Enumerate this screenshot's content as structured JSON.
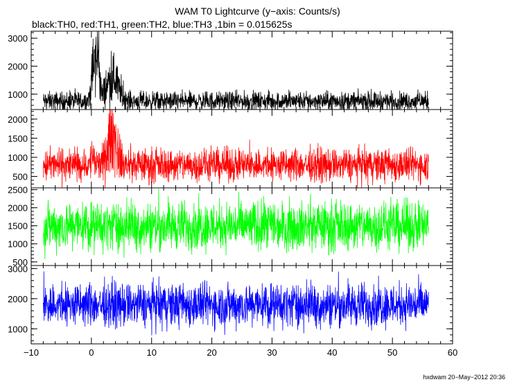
{
  "title": "WAM T0 Lightcurve (y−axis: Counts/s)",
  "subtitle": "black:TH0, red:TH1, green:TH2, blue:TH3 ,1bin = 0.015625s",
  "footer": "hxdwam 20−May−2012 20:36",
  "chart_data": {
    "type": "line",
    "title": "WAM T0 Lightcurve (y−axis: Counts/s)",
    "subtitle": "black:TH0, red:TH1, green:TH2, blue:TH3 ,1bin = 0.015625s",
    "xlabel": "",
    "ylabel": "Counts/s",
    "xlim": [
      -10,
      60
    ],
    "x_ticks": [
      -10,
      0,
      10,
      20,
      30,
      40,
      50,
      60
    ],
    "x_tick_labels": [
      "−10",
      "0",
      "10",
      "20",
      "30",
      "40",
      "50",
      "60"
    ],
    "x_data_range": [
      -8,
      56
    ],
    "bin_seconds": 0.015625,
    "series": [
      {
        "name": "TH0",
        "color": "#000000",
        "ylim": [
          450,
          3250
        ],
        "y_ticks": [
          1000,
          2000,
          3000
        ],
        "baseline_mean": 750,
        "noise_spread": 350,
        "bursts": [
          {
            "time": 0.5,
            "peak": 3200,
            "width": 0.6
          },
          {
            "time": 1.2,
            "peak": 3250,
            "width": 0.3
          },
          {
            "time": 3.5,
            "peak": 2300,
            "width": 1.4
          }
        ]
      },
      {
        "name": "TH1",
        "color": "#ff0000",
        "ylim": [
          200,
          2250
        ],
        "y_ticks": [
          500,
          1000,
          1500,
          2000
        ],
        "baseline_mean": 800,
        "noise_spread": 450,
        "bursts": [
          {
            "time": 0.2,
            "peak": 1300,
            "width": 0.3
          },
          {
            "time": 3.5,
            "peak": 2250,
            "width": 1.0
          }
        ]
      },
      {
        "name": "TH2",
        "color": "#00ff00",
        "ylim": [
          400,
          2550
        ],
        "y_ticks": [
          500,
          1000,
          1500,
          2000,
          2500
        ],
        "baseline_mean": 1500,
        "noise_spread": 700,
        "bursts": []
      },
      {
        "name": "TH3",
        "color": "#0000ff",
        "ylim": [
          500,
          3100
        ],
        "y_ticks": [
          1000,
          2000,
          3000
        ],
        "baseline_mean": 1800,
        "noise_spread": 750,
        "bursts": []
      }
    ]
  }
}
